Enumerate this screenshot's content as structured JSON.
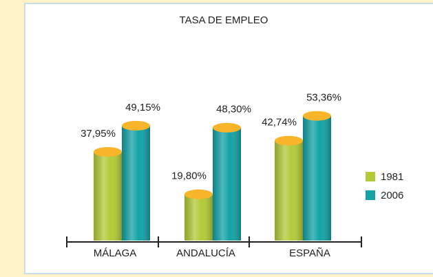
{
  "chart_data": {
    "type": "bar",
    "title": "TASA DE EMPLEO",
    "categories": [
      "MÁLAGA",
      "ANDALUCÍA",
      "ESPAÑA"
    ],
    "series": [
      {
        "name": "1981",
        "color": "#b3ca38",
        "values": [
          37.95,
          19.8,
          42.74
        ],
        "value_labels": [
          "37,95%",
          "19,80%",
          "42,74%"
        ]
      },
      {
        "name": "2006",
        "color": "#13a2a6",
        "values": [
          49.15,
          48.3,
          53.36
        ],
        "value_labels": [
          "49,15%",
          "48,30%",
          "53,36%"
        ]
      }
    ],
    "cap_color": "#f8b52a",
    "legend": "right"
  }
}
